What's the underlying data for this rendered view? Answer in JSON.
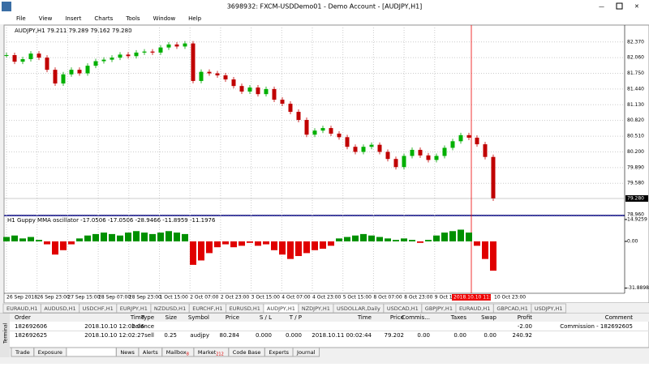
{
  "window": {
    "title": "3698932: FXCM-USDDemo01 - Demo Account - [AUDJPY,H1]"
  },
  "menu": [
    "File",
    "View",
    "Insert",
    "Charts",
    "Tools",
    "Window",
    "Help"
  ],
  "chart": {
    "type": "candlestick",
    "header": "AUDJPY,H1  79.211 79.289 79.162 79.280",
    "closes": [
      82.11,
      81.98,
      82.03,
      82.14,
      82.06,
      81.82,
      81.55,
      81.73,
      81.82,
      81.75,
      81.9,
      81.99,
      82.02,
      82.06,
      82.12,
      82.09,
      82.16,
      82.18,
      82.16,
      82.26,
      82.32,
      82.28,
      82.34,
      81.6,
      81.78,
      81.75,
      81.71,
      81.63,
      81.5,
      81.39,
      81.47,
      81.34,
      81.44,
      81.23,
      81.15,
      80.99,
      80.83,
      80.54,
      80.62,
      80.67,
      80.56,
      80.49,
      80.3,
      80.2,
      80.3,
      80.34,
      80.2,
      80.06,
      79.9,
      80.12,
      80.24,
      80.13,
      80.04,
      80.12,
      80.28,
      80.41,
      80.53,
      80.48,
      80.35,
      80.1,
      79.28
    ],
    "ylim": [
      78.96,
      82.67
    ],
    "yticks": [
      {
        "value": 82.37,
        "label": "82.370"
      },
      {
        "value": 82.06,
        "label": "82.060"
      },
      {
        "value": 81.75,
        "label": "81.750"
      },
      {
        "value": 81.44,
        "label": "81.440"
      },
      {
        "value": 81.13,
        "label": "81.130"
      },
      {
        "value": 80.82,
        "label": "80.820"
      },
      {
        "value": 80.51,
        "label": "80.510"
      },
      {
        "value": 80.2,
        "label": "80.200"
      },
      {
        "value": 79.89,
        "label": "79.890"
      },
      {
        "value": 79.58,
        "label": "79.580"
      },
      {
        "value": 78.96,
        "label": "78.960"
      }
    ],
    "current_price": {
      "value": 79.28,
      "label": "79.280"
    },
    "time_labels": [
      "26 Sep 2018",
      "26 Sep 23:00",
      "27 Sep 15:00",
      "28 Sep 07:00",
      "28 Sep 23:00",
      "1 Oct 15:00",
      "2 Oct 07:00",
      "2 Oct 23:00",
      "3 Oct 15:00",
      "4 Oct 07:00",
      "4 Oct 23:00",
      "5 Oct 15:00",
      "8 Oct 07:00",
      "8 Oct 23:00",
      "9 Oct 15:00"
    ],
    "marker_time": "2018.10.10 11:00",
    "last_time": "10 Oct 23:00"
  },
  "oscillator": {
    "label": "H1 Guppy MMA oscillator -17.0506 -17.0506 -28.9466 -11.8959 -11.1976",
    "values": [
      3,
      4,
      2,
      3,
      1,
      -2,
      -9,
      -6,
      -2,
      2,
      4,
      5,
      6,
      5,
      4,
      6,
      7,
      6,
      5,
      6,
      7,
      6,
      5,
      -16,
      -13,
      -8,
      -4,
      -2,
      -4,
      -3,
      -1,
      -3,
      -2,
      -6,
      -9,
      -12,
      -10,
      -8,
      -6,
      -5,
      -3,
      2,
      3,
      4,
      5,
      4,
      3,
      2,
      1,
      2,
      1,
      -1,
      1,
      4,
      6,
      7,
      8,
      6,
      -3,
      -12,
      -20
    ],
    "ylim": [
      -35.4,
      17.1
    ],
    "yticks": [
      14.9259,
      {
        "value": 0,
        "label": "0.00"
      },
      -31.8898
    ]
  },
  "symbol_tabs": [
    "EURAUD,H1",
    "AUDUSD,H1",
    "USDCHF,H1",
    "EURJPY,H1",
    "NZDUSD,H1",
    "EURCHF,H1",
    "EURUSD,H1",
    "AUDJPY,H1",
    "NZDJPY,H1",
    "USDOLLAR,Daily",
    "USDCAD,H1",
    "GBPJPY,H1",
    "EURAUD,H1",
    "GBPCAD,H1",
    "USDJPY,H1"
  ],
  "terminal": {
    "label": "Terminal",
    "columns": [
      "Order",
      "Time",
      "Type",
      "Size",
      "Symbol",
      "Price",
      "S / L",
      "T / P",
      "Time",
      "Price",
      "Commis...",
      "Taxes",
      "Swap",
      "Profit",
      "Comment"
    ],
    "rows": [
      [
        "182692606",
        "2018.10.10 12:02:06",
        "balance",
        null,
        null,
        null,
        null,
        null,
        null,
        null,
        null,
        null,
        null,
        "-2.00",
        "Commission - 182692605"
      ],
      [
        "182692625",
        "2018.10.10 12:02:27",
        "sell",
        "0.25",
        "audjpy",
        "80.284",
        "0.000",
        "0.000",
        "2018.10.11 00:02:44",
        "79.202",
        "0.00",
        "0.00",
        "0.00",
        "240.92",
        null
      ]
    ],
    "tabs": [
      {
        "label": "Trade"
      },
      {
        "label": "Exposure"
      },
      {
        "label": "Account History"
      },
      {
        "label": "News"
      },
      {
        "label": "Alerts"
      },
      {
        "label": "Mailbox",
        "badge": "8"
      },
      {
        "label": "Market",
        "badge": "212"
      },
      {
        "label": "Code Base"
      },
      {
        "label": "Experts"
      },
      {
        "label": "Journal"
      }
    ]
  }
}
